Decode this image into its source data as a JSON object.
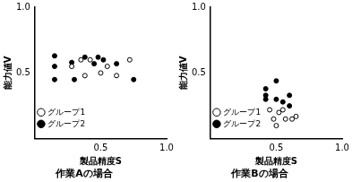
{
  "chart_data": [
    {
      "type": "scatter",
      "title": "作業Aの場合",
      "x_label": "製品精度S",
      "y_label": "能力値V",
      "xlim": [
        0,
        1
      ],
      "ylim": [
        0,
        1
      ],
      "xticks": [
        0.5,
        {
          "value": 1,
          "label": "1.0"
        }
      ],
      "yticks": [
        0.5,
        {
          "value": 1,
          "label": "1.0"
        }
      ],
      "grid": false,
      "legend": "upper right",
      "series": [
        {
          "name": "グループ1",
          "color": "#000000",
          "marker": "circle_open",
          "x": [
            0.28,
            0.38,
            0.42,
            0.5,
            0.55,
            0.62,
            0.72,
            0.35
          ],
          "values": [
            0.55,
            0.48,
            0.6,
            0.5,
            0.55,
            0.48,
            0.6,
            0.6
          ]
        },
        {
          "name": "グループ2",
          "color": "#000000",
          "marker": "circle",
          "x": [
            0.15,
            0.15,
            0.15,
            0.28,
            0.38,
            0.45,
            0.48,
            0.52,
            0.62,
            0.75,
            0.3
          ],
          "values": [
            0.63,
            0.55,
            0.45,
            0.58,
            0.62,
            0.57,
            0.62,
            0.6,
            0.57,
            0.45,
            0.45
          ]
        }
      ]
    },
    {
      "type": "scatter",
      "title": "作業Bの場合",
      "x_label": "製品精度S",
      "y_label": "能力値V",
      "xlim": [
        0,
        1
      ],
      "ylim": [
        0,
        1
      ],
      "xticks": [
        0.5,
        {
          "value": 1,
          "label": "1.0"
        }
      ],
      "yticks": [
        0.5,
        {
          "value": 1,
          "label": "1.0"
        }
      ],
      "grid": false,
      "legend": "upper right",
      "series": [
        {
          "name": "グループ1",
          "color": "#000000",
          "marker": "circle_open",
          "x": [
            0.45,
            0.48,
            0.5,
            0.52,
            0.55,
            0.57,
            0.62,
            0.65
          ],
          "values": [
            0.22,
            0.15,
            0.1,
            0.2,
            0.22,
            0.15,
            0.15,
            0.17
          ]
        },
        {
          "name": "グループ2",
          "color": "#000000",
          "marker": "circle",
          "x": [
            0.42,
            0.42,
            0.42,
            0.5,
            0.5,
            0.55,
            0.6,
            0.6
          ],
          "values": [
            0.38,
            0.33,
            0.3,
            0.44,
            0.3,
            0.28,
            0.33,
            0.25
          ]
        }
      ]
    }
  ]
}
